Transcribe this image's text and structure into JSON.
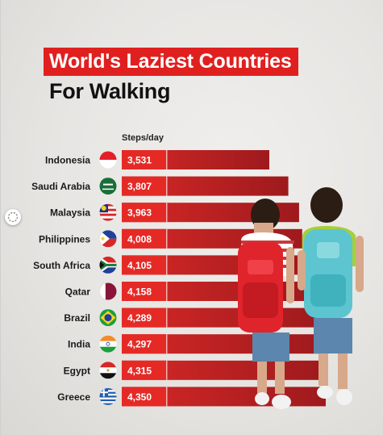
{
  "title": "World's Laziest Countries",
  "subtitle": "For Walking",
  "unit_label": "Steps/day",
  "colors": {
    "accent": "#e0201f",
    "bar_dark": "#9e1a1d",
    "bar_light": "#d62826"
  },
  "chart_data": {
    "type": "bar",
    "orientation": "horizontal",
    "title": "World's Laziest Countries For Walking",
    "ylabel": "Steps/day",
    "categories": [
      "Indonesia",
      "Saudi Arabia",
      "Malaysia",
      "Philippines",
      "South Africa",
      "Qatar",
      "Brazil",
      "India",
      "Egypt",
      "Greece"
    ],
    "values": [
      3531,
      3807,
      3963,
      4008,
      4105,
      4158,
      4289,
      4297,
      4315,
      4350
    ],
    "value_labels": [
      "3,531",
      "3,807",
      "3,963",
      "4,008",
      "4,105",
      "4,158",
      "4,289",
      "4,297",
      "4,315",
      "4,350"
    ],
    "flags": [
      "indonesia-flag-icon",
      "saudi-arabia-flag-icon",
      "malaysia-flag-icon",
      "philippines-flag-icon",
      "south-africa-flag-icon",
      "qatar-flag-icon",
      "brazil-flag-icon",
      "india-flag-icon",
      "egypt-flag-icon",
      "greece-flag-icon"
    ],
    "grid": false,
    "legend": "none"
  }
}
